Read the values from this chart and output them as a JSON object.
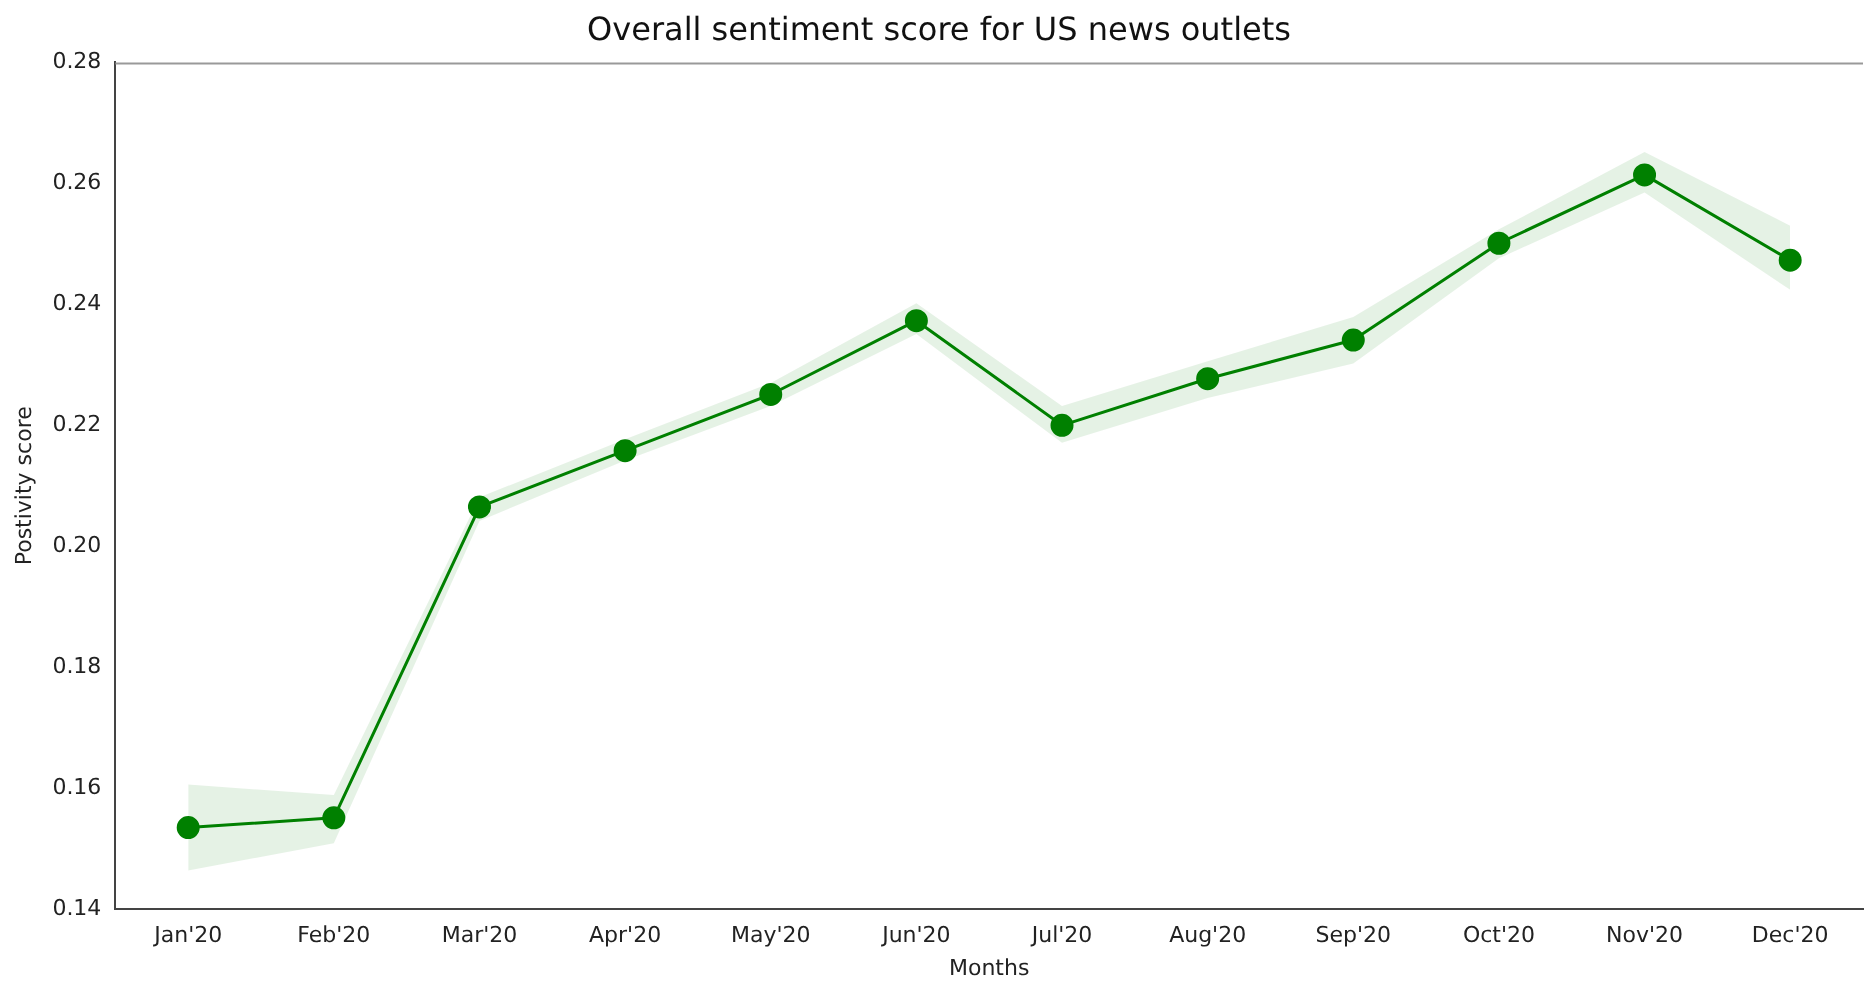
{
  "chart_data": {
    "type": "line",
    "title": "Overall sentiment score for US news outlets",
    "xlabel": "Months",
    "ylabel": "Postivity score",
    "categories": [
      "Jan'20",
      "Feb'20",
      "Mar'20",
      "Apr'20",
      "May'20",
      "Jun'20",
      "Jul'20",
      "Aug'20",
      "Sep'20",
      "Oct'20",
      "Nov'20",
      "Dec'20"
    ],
    "series": [
      {
        "color": "#008000",
        "values": [
          0.1535,
          0.1551,
          0.2065,
          0.2158,
          0.2251,
          0.2373,
          0.22,
          0.2277,
          0.2341,
          0.2501,
          0.2614,
          0.2473
        ],
        "lower": [
          0.1464,
          0.1509,
          0.2042,
          0.2142,
          0.2232,
          0.2351,
          0.2171,
          0.2245,
          0.2302,
          0.2476,
          0.2585,
          0.2424
        ],
        "upper": [
          0.1606,
          0.1589,
          0.2081,
          0.2177,
          0.227,
          0.2402,
          0.2232,
          0.2306,
          0.2379,
          0.2524,
          0.2652,
          0.253
        ]
      }
    ],
    "ylim": [
      0.14,
      0.28
    ],
    "yticks": [
      0.14,
      0.16,
      0.18,
      {
        "value": 0.2,
        "label": "0.20"
      },
      0.22,
      0.24,
      0.26,
      0.28
    ],
    "grid": false,
    "marker": "circle",
    "line_style": "solid"
  }
}
